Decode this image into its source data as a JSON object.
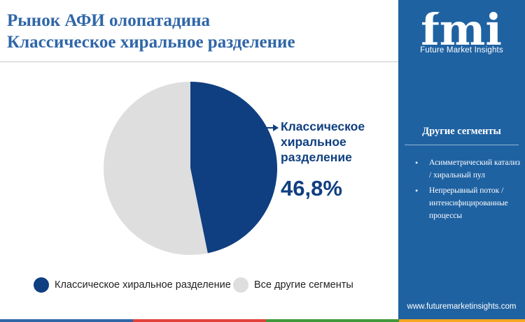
{
  "title": {
    "line1": "Рынок АФИ олопатадина",
    "line2": "Классическое хиральное разделение"
  },
  "chart_data": {
    "type": "pie",
    "slices": [
      {
        "label": "Классическое хиральное разделение",
        "value": 46.8,
        "color": "#0f3f80"
      },
      {
        "label": "Все другие сегменты",
        "value": 53.2,
        "color": "#dedede"
      }
    ],
    "start": "12 o'clock, clockwise",
    "legend_position": "bottom"
  },
  "callout": {
    "label": "Классическое хиральное разделение",
    "value": "46,8%"
  },
  "legend": [
    {
      "label": "Классическое хиральное разделение",
      "color": "#0f3f80"
    },
    {
      "label": "Все другие сегменты",
      "color": "#dedede"
    }
  ],
  "sidebar": {
    "logo_text": "fmi",
    "logo_subtitle": "Future Market Insights",
    "segments_title": "Другие сегменты",
    "segments": [
      "Асимметрический катализ / хиральный пул",
      "Непрерывный поток / интенсифицированные процессы"
    ],
    "website": "www.futuremarketinsights.com",
    "background": "#1f62a2"
  },
  "colors": {
    "title": "#2f66a8",
    "accent_dark_blue": "#0f3f80",
    "stripe": [
      "#2f66a8",
      "#e3413a",
      "#3f9a3c",
      "#f5a623"
    ]
  }
}
